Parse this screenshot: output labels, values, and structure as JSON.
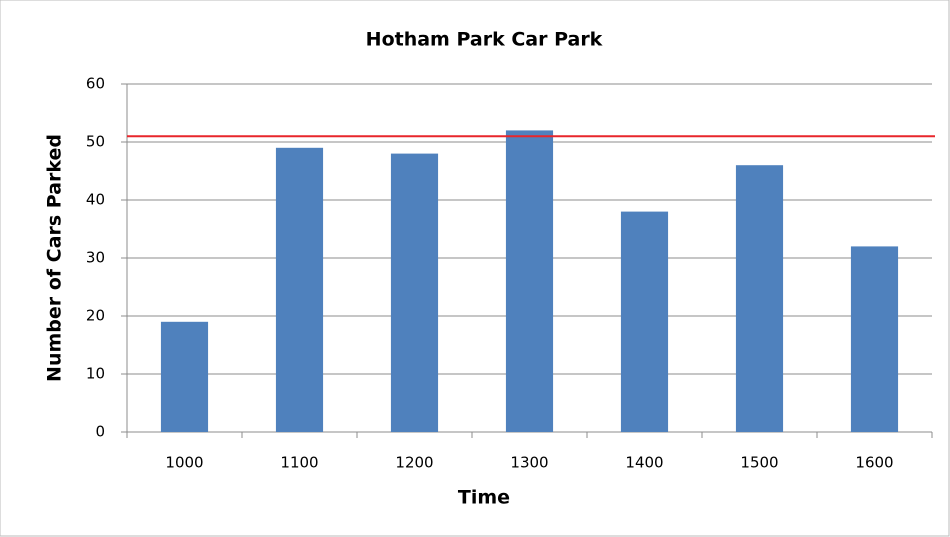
{
  "chart_data": {
    "type": "bar",
    "title": "Hotham Park Car Park",
    "x_label": "Time",
    "y_label": "Number of Cars Parked",
    "categories": [
      "1000",
      "1100",
      "1200",
      "1300",
      "1400",
      "1500",
      "1600"
    ],
    "values": [
      19,
      49,
      48,
      52,
      38,
      46,
      32
    ],
    "color": "#4f81bd",
    "ylim": [
      0,
      60
    ],
    "yticks": [
      0,
      10,
      20,
      30,
      40,
      50,
      60
    ],
    "grid": true,
    "reference_line": {
      "value": 51,
      "color": "#e8262b"
    }
  }
}
